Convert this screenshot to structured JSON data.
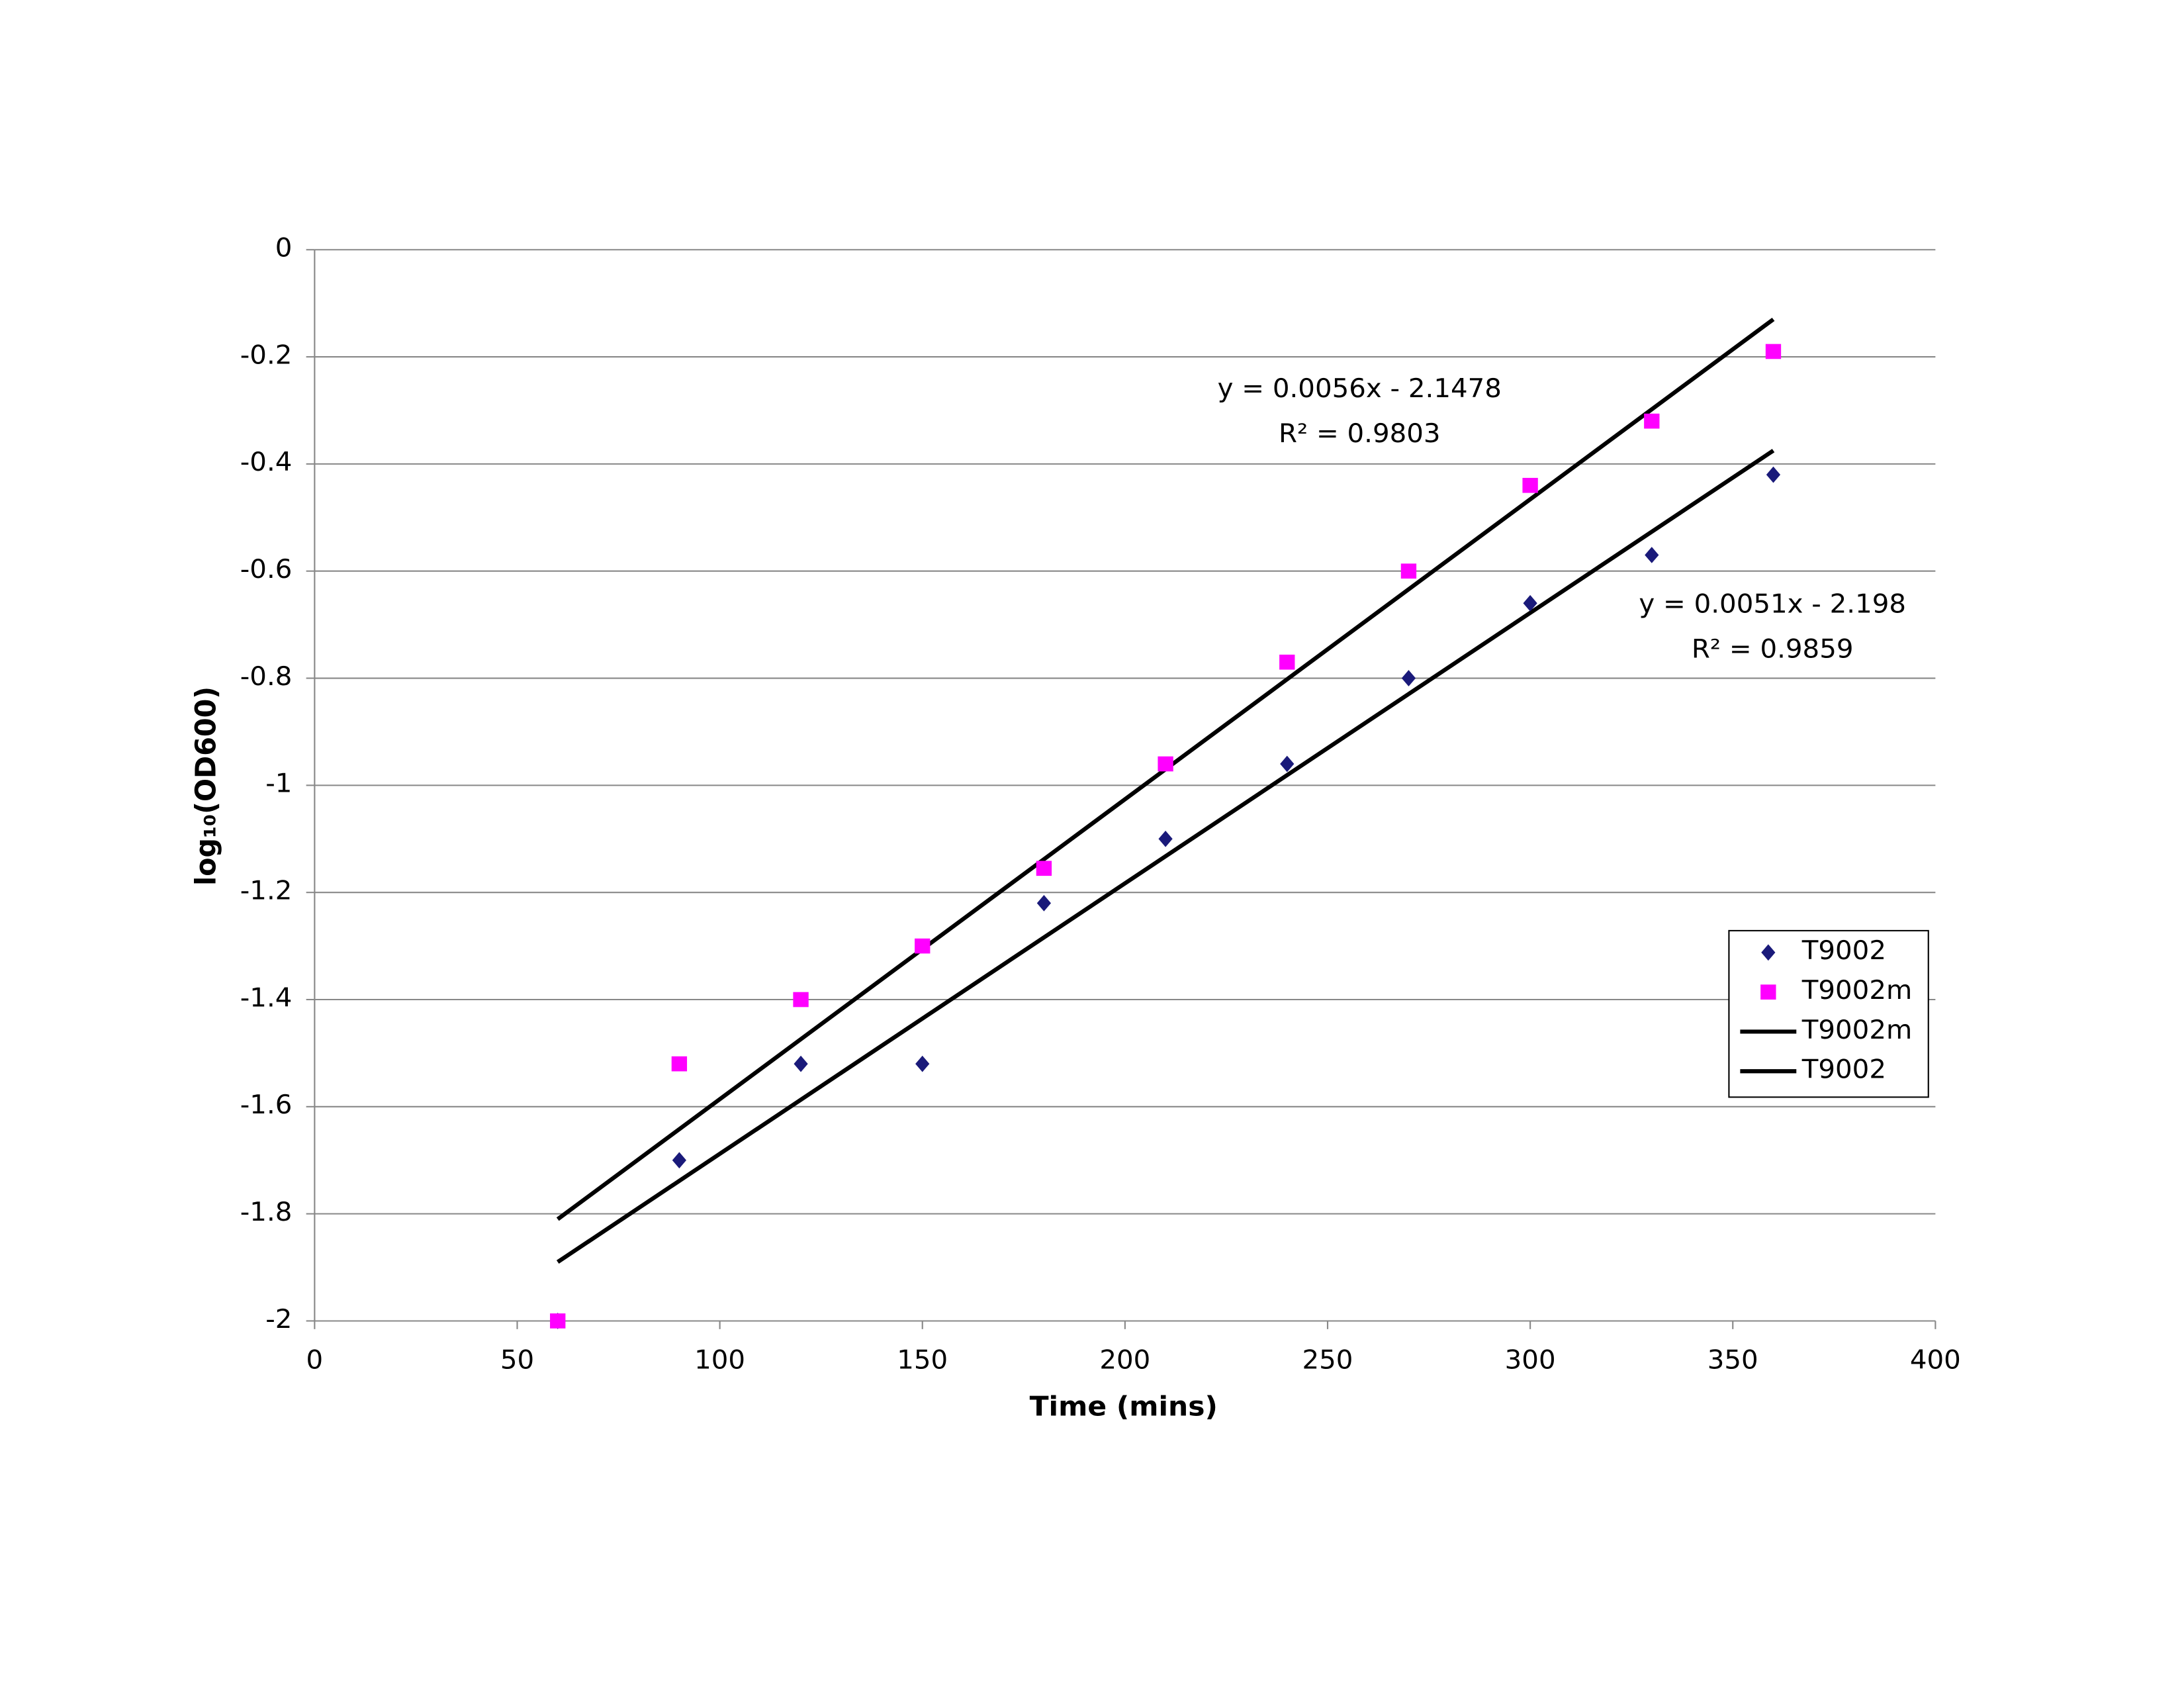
{
  "chart_data": {
    "type": "scatter",
    "x_label": "Time (mins)",
    "y_label": "log₁₀(OD600)",
    "xlim": [
      0,
      400
    ],
    "xticks": [
      0,
      50,
      100,
      150,
      200,
      250,
      300,
      350,
      400
    ],
    "ylim": [
      -2,
      0
    ],
    "yticks": [
      -2,
      -1.8,
      -1.6,
      -1.4,
      -1.2,
      -1,
      -0.8,
      -0.6,
      -0.4,
      -0.2,
      0
    ],
    "grid": true,
    "legend": "lower right",
    "series": [
      {
        "name": "T9002",
        "type": "scatter",
        "marker": "diamond",
        "color": "#1a1a7a",
        "x": [
          60,
          90,
          120,
          150,
          180,
          210,
          240,
          270,
          300,
          330,
          360
        ],
        "values": [
          -2,
          -1.7,
          -1.52,
          -1.52,
          -1.22,
          -1.1,
          -0.96,
          -0.8,
          -0.66,
          -0.57,
          -0.42
        ]
      },
      {
        "name": "T9002m",
        "type": "scatter",
        "marker": "square",
        "color": "#ff00ff",
        "x": [
          60,
          90,
          120,
          150,
          180,
          210,
          240,
          270,
          300,
          330,
          360
        ],
        "values": [
          -2,
          -1.52,
          -1.4,
          -1.3,
          -1.155,
          -0.96,
          -0.77,
          -0.6,
          -0.44,
          -0.32,
          -0.19
        ]
      },
      {
        "name": "T9002m",
        "type": "line",
        "color": "#000000",
        "x": [
          60,
          360
        ],
        "values": [
          -1.81,
          -0.13
        ]
      },
      {
        "name": "T9002",
        "type": "line",
        "color": "#000000",
        "x": [
          60,
          360
        ],
        "values": [
          -1.89,
          -0.375
        ]
      }
    ],
    "annotations": [
      {
        "equation": "y = 0.0056x - 2.1478",
        "r_squared": "R² = 0.9803"
      },
      {
        "equation": "y = 0.0051x - 2.198",
        "r_squared": "R² = 0.9859"
      }
    ]
  }
}
